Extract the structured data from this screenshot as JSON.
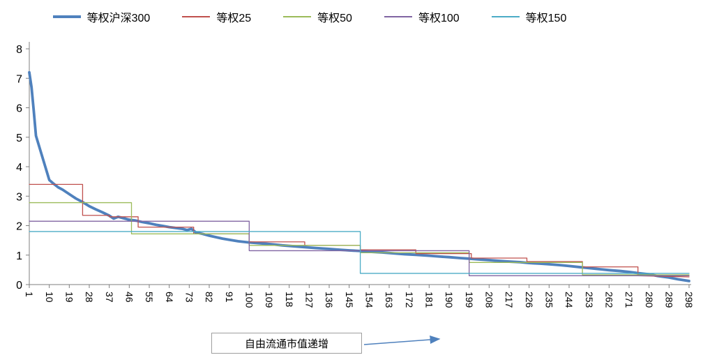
{
  "chart_data": {
    "type": "line",
    "title": "",
    "legend_position": "top",
    "grid": false,
    "x": {
      "min": 1,
      "max": 298,
      "tick_labels": [
        "1",
        "10",
        "19",
        "28",
        "37",
        "46",
        "55",
        "64",
        "73",
        "82",
        "91",
        "100",
        "109",
        "118",
        "127",
        "136",
        "145",
        "154",
        "163",
        "172",
        "181",
        "190",
        "199",
        "208",
        "217",
        "226",
        "235",
        "244",
        "253",
        "262",
        "271",
        "280",
        "289",
        "298"
      ],
      "label": "自由流通市值递增"
    },
    "y": {
      "min": 0,
      "max": 8,
      "ticks": [
        0,
        1,
        2,
        3,
        4,
        5,
        6,
        7,
        8
      ]
    },
    "series": [
      {
        "name": "等权沪深300",
        "color": "#4F81BD",
        "width": 3.8,
        "points": [
          [
            1,
            7.2
          ],
          [
            2,
            6.7
          ],
          [
            3,
            5.9
          ],
          [
            4,
            5.05
          ],
          [
            5,
            4.8
          ],
          [
            6,
            4.55
          ],
          [
            7,
            4.3
          ],
          [
            8,
            4.05
          ],
          [
            9,
            3.8
          ],
          [
            10,
            3.55
          ],
          [
            12,
            3.42
          ],
          [
            14,
            3.3
          ],
          [
            16,
            3.22
          ],
          [
            18,
            3.12
          ],
          [
            20,
            3.02
          ],
          [
            22,
            2.92
          ],
          [
            25,
            2.8
          ],
          [
            28,
            2.66
          ],
          [
            31,
            2.55
          ],
          [
            34,
            2.45
          ],
          [
            37,
            2.34
          ],
          [
            39,
            2.24
          ],
          [
            41,
            2.3
          ],
          [
            43,
            2.26
          ],
          [
            46,
            2.2
          ],
          [
            49,
            2.17
          ],
          [
            52,
            2.12
          ],
          [
            55,
            2.08
          ],
          [
            58,
            2.03
          ],
          [
            61,
            1.99
          ],
          [
            64,
            1.95
          ],
          [
            67,
            1.92
          ],
          [
            70,
            1.89
          ],
          [
            72,
            1.85
          ],
          [
            74,
            1.89
          ],
          [
            76,
            1.77
          ],
          [
            79,
            1.72
          ],
          [
            82,
            1.66
          ],
          [
            85,
            1.61
          ],
          [
            88,
            1.56
          ],
          [
            91,
            1.52
          ],
          [
            95,
            1.47
          ],
          [
            100,
            1.43
          ],
          [
            105,
            1.4
          ],
          [
            110,
            1.37
          ],
          [
            115,
            1.33
          ],
          [
            120,
            1.3
          ],
          [
            125,
            1.27
          ],
          [
            130,
            1.24
          ],
          [
            136,
            1.21
          ],
          [
            141,
            1.18
          ],
          [
            145,
            1.16
          ],
          [
            150,
            1.14
          ],
          [
            155,
            1.11
          ],
          [
            160,
            1.09
          ],
          [
            165,
            1.06
          ],
          [
            170,
            1.03
          ],
          [
            175,
            1.01
          ],
          [
            181,
            0.98
          ],
          [
            186,
            0.95
          ],
          [
            190,
            0.93
          ],
          [
            195,
            0.9
          ],
          [
            199,
            0.88
          ],
          [
            204,
            0.85
          ],
          [
            208,
            0.83
          ],
          [
            213,
            0.8
          ],
          [
            217,
            0.78
          ],
          [
            222,
            0.76
          ],
          [
            226,
            0.73
          ],
          [
            231,
            0.71
          ],
          [
            235,
            0.69
          ],
          [
            240,
            0.66
          ],
          [
            244,
            0.63
          ],
          [
            249,
            0.59
          ],
          [
            253,
            0.56
          ],
          [
            258,
            0.52
          ],
          [
            262,
            0.49
          ],
          [
            267,
            0.46
          ],
          [
            271,
            0.43
          ],
          [
            275,
            0.39
          ],
          [
            280,
            0.35
          ],
          [
            284,
            0.29
          ],
          [
            289,
            0.24
          ],
          [
            293,
            0.18
          ],
          [
            298,
            0.12
          ]
        ]
      },
      {
        "name": "等权25",
        "color": "#C0504D",
        "width": 1.3,
        "points": [
          [
            1,
            3.4
          ],
          [
            25,
            3.4
          ],
          [
            25,
            2.35
          ],
          [
            37,
            2.35
          ],
          [
            37,
            2.3
          ],
          [
            50,
            2.3
          ],
          [
            50,
            1.95
          ],
          [
            75,
            1.95
          ],
          [
            75,
            1.72
          ],
          [
            100,
            1.72
          ],
          [
            100,
            1.45
          ],
          [
            125,
            1.45
          ],
          [
            125,
            1.33
          ],
          [
            150,
            1.33
          ],
          [
            150,
            1.18
          ],
          [
            175,
            1.18
          ],
          [
            175,
            1.05
          ],
          [
            200,
            1.05
          ],
          [
            200,
            0.9
          ],
          [
            225,
            0.9
          ],
          [
            225,
            0.78
          ],
          [
            250,
            0.78
          ],
          [
            250,
            0.6
          ],
          [
            275,
            0.6
          ],
          [
            275,
            0.3
          ],
          [
            298,
            0.26
          ]
        ]
      },
      {
        "name": "等权50",
        "color": "#9BBB59",
        "width": 1.3,
        "points": [
          [
            1,
            2.78
          ],
          [
            47,
            2.78
          ],
          [
            47,
            1.72
          ],
          [
            100,
            1.72
          ],
          [
            100,
            1.33
          ],
          [
            150,
            1.33
          ],
          [
            150,
            1.08
          ],
          [
            199,
            1.08
          ],
          [
            199,
            0.75
          ],
          [
            250,
            0.75
          ],
          [
            250,
            0.33
          ],
          [
            298,
            0.33
          ]
        ]
      },
      {
        "name": "等权100",
        "color": "#8064A2",
        "width": 1.3,
        "points": [
          [
            1,
            2.15
          ],
          [
            100,
            2.15
          ],
          [
            100,
            1.15
          ],
          [
            199,
            1.15
          ],
          [
            199,
            0.3
          ],
          [
            298,
            0.3
          ]
        ]
      },
      {
        "name": "等权150",
        "color": "#4BACC6",
        "width": 1.3,
        "points": [
          [
            1,
            1.8
          ],
          [
            150,
            1.8
          ],
          [
            150,
            0.38
          ],
          [
            298,
            0.38
          ]
        ]
      }
    ]
  },
  "axis_caption": {
    "text": "自由流通市值递增",
    "arrow_color": "#4F81BD"
  }
}
